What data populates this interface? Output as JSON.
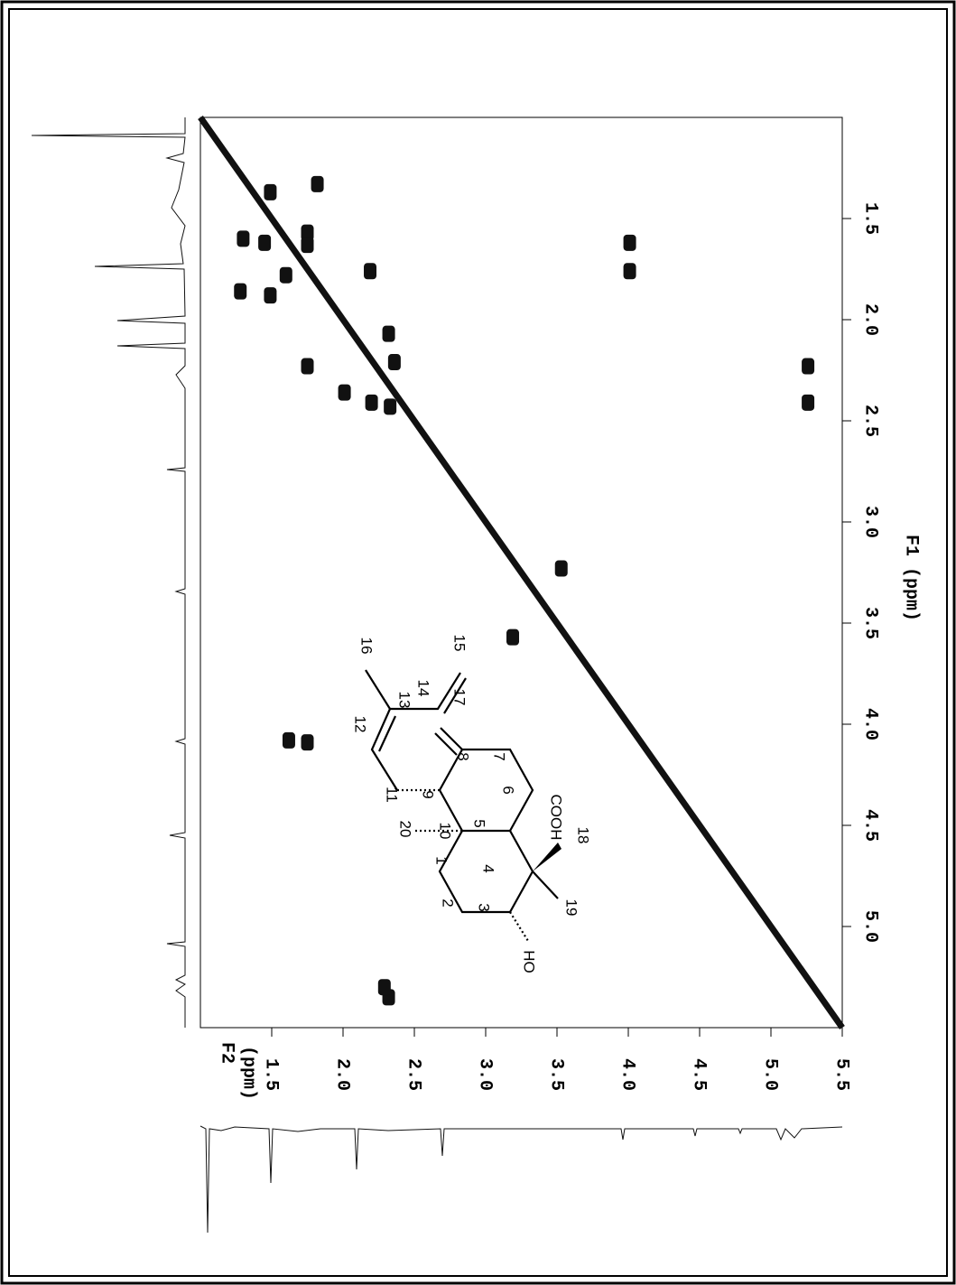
{
  "chart_data": {
    "type": "scatter",
    "xlabel": [
      "F2",
      "(ppm)"
    ],
    "ylabel": "F1 (ppm)",
    "x": [
      1.49,
      1.82,
      1.3,
      1.45,
      1.75,
      1.75,
      1.28,
      1.49,
      1.6,
      2.19,
      2.32,
      2.36,
      1.75,
      2.01,
      2.2,
      2.33,
      1.62,
      1.75,
      2.32,
      2.29,
      3.53,
      3.19,
      4.01,
      4.01,
      5.26,
      5.26
    ],
    "values": [
      1.37,
      1.33,
      1.6,
      1.62,
      1.57,
      1.63,
      1.86,
      1.88,
      1.78,
      1.76,
      2.07,
      2.21,
      2.23,
      2.36,
      2.41,
      2.43,
      4.08,
      4.09,
      5.35,
      5.3,
      3.23,
      3.57,
      1.62,
      1.76,
      2.23,
      2.41
    ],
    "color": "#111111",
    "xlim": [
      1.0,
      5.5
    ],
    "ylim": [
      1.0,
      5.5
    ],
    "xticks": [
      1.5,
      {
        "value": 2,
        "label": "2.0"
      },
      2.5,
      {
        "value": 3,
        "label": "3.0"
      },
      3.5,
      {
        "value": 4,
        "label": "4.0"
      },
      4.5,
      {
        "value": 5,
        "label": "5.0"
      },
      5.5
    ],
    "yticks": [
      1.5,
      {
        "value": 2,
        "label": "2.0"
      },
      2.5,
      {
        "value": 3,
        "label": "3.0"
      },
      3.5,
      {
        "value": 4,
        "label": "4.0"
      },
      4.5,
      {
        "value": 5,
        "label": "5.0"
      }
    ]
  },
  "structure": {
    "labels": [
      "16",
      "15",
      "14",
      "13",
      "12",
      "17",
      "8",
      "7",
      "11",
      "9",
      "6",
      "20",
      "10",
      "5",
      "1",
      "COOH",
      "4",
      "18",
      "19",
      "2",
      "3",
      "HO"
    ]
  }
}
